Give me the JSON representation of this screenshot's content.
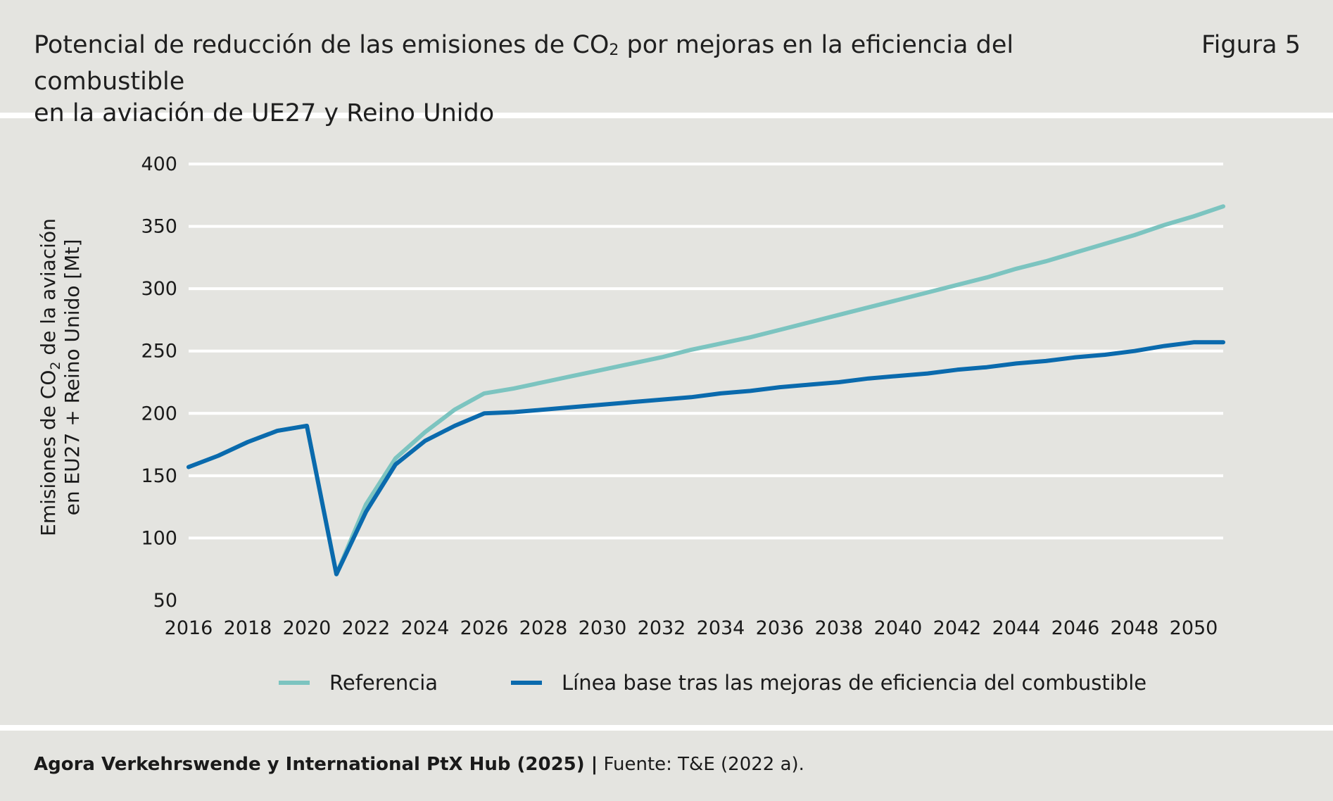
{
  "header": {
    "title_part1": "Potencial de reducción de las emisiones de CO",
    "title_sub": "2",
    "title_part2": " por mejoras en la eficiencia del combustible",
    "title_line2": "en la aviación de UE27 y Reino Unido",
    "figure_label": "Figura 5"
  },
  "footer": {
    "source_bold": "Agora Verkehrswende y International PtX Hub (2025) |",
    "source_rest": " Fuente: T&E (2022 a)."
  },
  "colors": {
    "background": "#e4e4e0",
    "gridline": "#ffffff",
    "reference": "#7cc4c0",
    "baseline": "#0a6aad"
  },
  "chart_data": {
    "type": "line",
    "title": "Potencial de reducción de las emisiones de CO₂ por mejoras en la eficiencia del combustible en la aviación de UE27 y Reino Unido",
    "ylabel_line1_a": "Emisiones de CO",
    "ylabel_line1_sub": "2",
    "ylabel_line1_b": " de la aviación",
    "ylabel_line2": "en EU27 + Reino Unido [Mt]",
    "xlabel": "",
    "ylim": [
      50,
      400
    ],
    "xlim": [
      2016,
      2051
    ],
    "yticks": [
      "50",
      "100",
      "150",
      "200",
      "250",
      "300",
      "350",
      "400"
    ],
    "xticks": [
      "2016",
      "2018",
      "2020",
      "2022",
      "2024",
      "2026",
      "2028",
      "2030",
      "2032",
      "2034",
      "2036",
      "2038",
      "2040",
      "2042",
      "2044",
      "2046",
      "2048",
      "2050"
    ],
    "grid": true,
    "legend_position": "bottom",
    "x": [
      2016,
      2017,
      2018,
      2019,
      2020,
      2021,
      2022,
      2023,
      2024,
      2025,
      2026,
      2027,
      2028,
      2029,
      2030,
      2031,
      2032,
      2033,
      2034,
      2035,
      2036,
      2037,
      2038,
      2039,
      2040,
      2041,
      2042,
      2043,
      2044,
      2045,
      2046,
      2047,
      2048,
      2049,
      2050,
      2051
    ],
    "series": [
      {
        "name": "Referencia",
        "color": "#7cc4c0",
        "values": [
          157,
          166,
          177,
          186,
          190,
          71,
          127,
          164,
          185,
          203,
          216,
          220,
          225,
          230,
          235,
          240,
          245,
          251,
          256,
          261,
          267,
          273,
          279,
          285,
          291,
          297,
          303,
          309,
          316,
          322,
          329,
          336,
          343,
          351,
          358,
          366
        ]
      },
      {
        "name": "Línea base tras las mejoras de eficiencia del combustible",
        "color": "#0a6aad",
        "values": [
          157,
          166,
          177,
          186,
          190,
          71,
          121,
          159,
          178,
          190,
          200,
          201,
          203,
          205,
          207,
          209,
          211,
          213,
          216,
          218,
          221,
          223,
          225,
          228,
          230,
          232,
          235,
          237,
          240,
          242,
          245,
          247,
          250,
          254,
          257,
          257
        ]
      }
    ]
  }
}
